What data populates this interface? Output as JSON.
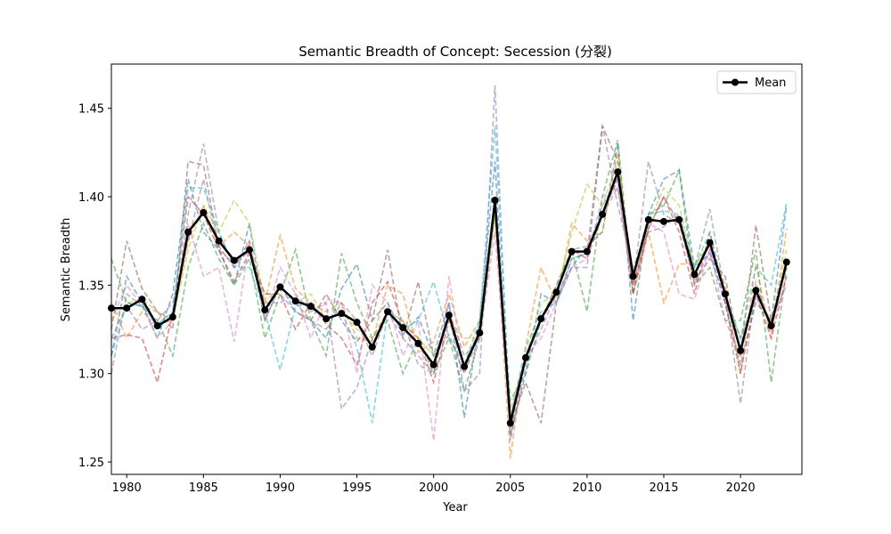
{
  "chart_data": {
    "type": "line",
    "title": "Semantic Breadth of Concept: Secession (分裂)",
    "xlabel": "Year",
    "ylabel": "Semantic Breadth",
    "xlim": [
      1979,
      2024
    ],
    "ylim": [
      1.243,
      1.475
    ],
    "xticks": [
      1980,
      1985,
      1990,
      1995,
      2000,
      2005,
      2010,
      2015,
      2020
    ],
    "yticks": [
      1.25,
      1.3,
      1.35,
      1.4,
      1.45
    ],
    "ytick_labels": [
      "1.25",
      "1.30",
      "1.35",
      "1.40",
      "1.45"
    ],
    "grid": false,
    "legend": {
      "placement": "top-right",
      "entries": [
        "Mean"
      ]
    },
    "x": [
      1979,
      1980,
      1981,
      1982,
      1983,
      1984,
      1985,
      1986,
      1987,
      1988,
      1989,
      1990,
      1991,
      1992,
      1993,
      1994,
      1995,
      1996,
      1997,
      1998,
      1999,
      2000,
      2001,
      2002,
      2003,
      2004,
      2005,
      2006,
      2007,
      2008,
      2009,
      2010,
      2011,
      2012,
      2013,
      2014,
      2015,
      2016,
      2017,
      2018,
      2019,
      2020,
      2021,
      2022,
      2023
    ],
    "mean_series": {
      "name": "Mean",
      "color": "#000000",
      "values": [
        1.337,
        1.337,
        1.342,
        1.327,
        1.332,
        1.38,
        1.391,
        1.375,
        1.364,
        1.37,
        1.336,
        1.349,
        1.341,
        1.338,
        1.331,
        1.334,
        1.329,
        1.315,
        1.335,
        1.326,
        1.317,
        1.305,
        1.333,
        1.304,
        1.323,
        1.398,
        1.272,
        1.309,
        1.331,
        1.346,
        1.369,
        1.369,
        1.39,
        1.414,
        1.355,
        1.387,
        1.386,
        1.387,
        1.356,
        1.374,
        1.345,
        1.313,
        1.347,
        1.327,
        1.363
      ]
    },
    "series": [
      {
        "color": "#1f77b4",
        "values": [
          1.31,
          1.355,
          1.34,
          1.32,
          1.345,
          1.41,
          1.38,
          1.37,
          1.35,
          1.385,
          1.33,
          1.35,
          1.335,
          1.33,
          1.32,
          1.348,
          1.362,
          1.33,
          1.34,
          1.322,
          1.332,
          1.31,
          1.34,
          1.275,
          1.33,
          1.42,
          1.265,
          1.3,
          1.345,
          1.34,
          1.36,
          1.372,
          1.38,
          1.43,
          1.33,
          1.39,
          1.41,
          1.415,
          1.36,
          1.368,
          1.34,
          1.305,
          1.34,
          1.33,
          1.395
        ]
      },
      {
        "color": "#ff7f0e",
        "values": [
          1.34,
          1.32,
          1.335,
          1.328,
          1.33,
          1.375,
          1.395,
          1.372,
          1.38,
          1.372,
          1.34,
          1.378,
          1.348,
          1.34,
          1.335,
          1.34,
          1.32,
          1.318,
          1.35,
          1.345,
          1.312,
          1.318,
          1.345,
          1.315,
          1.33,
          1.39,
          1.252,
          1.315,
          1.36,
          1.34,
          1.385,
          1.375,
          1.38,
          1.425,
          1.345,
          1.38,
          1.34,
          1.362,
          1.362,
          1.372,
          1.35,
          1.3,
          1.362,
          1.32,
          1.382
        ]
      },
      {
        "color": "#2ca02c",
        "values": [
          1.365,
          1.34,
          1.338,
          1.33,
          1.31,
          1.36,
          1.385,
          1.365,
          1.35,
          1.365,
          1.32,
          1.345,
          1.37,
          1.33,
          1.31,
          1.368,
          1.34,
          1.32,
          1.33,
          1.3,
          1.32,
          1.3,
          1.32,
          1.29,
          1.32,
          1.39,
          1.285,
          1.3,
          1.33,
          1.35,
          1.37,
          1.335,
          1.4,
          1.432,
          1.345,
          1.39,
          1.395,
          1.415,
          1.35,
          1.36,
          1.33,
          1.33,
          1.37,
          1.295,
          1.36
        ]
      },
      {
        "color": "#d62728",
        "values": [
          1.32,
          1.322,
          1.32,
          1.295,
          1.335,
          1.4,
          1.39,
          1.37,
          1.352,
          1.368,
          1.345,
          1.345,
          1.325,
          1.34,
          1.328,
          1.32,
          1.305,
          1.34,
          1.352,
          1.328,
          1.32,
          1.295,
          1.33,
          1.305,
          1.325,
          1.395,
          1.275,
          1.31,
          1.33,
          1.345,
          1.37,
          1.365,
          1.39,
          1.41,
          1.345,
          1.382,
          1.4,
          1.38,
          1.345,
          1.38,
          1.34,
          1.3,
          1.345,
          1.32,
          1.355
        ]
      },
      {
        "color": "#9467bd",
        "values": [
          1.32,
          1.338,
          1.325,
          1.33,
          1.34,
          1.375,
          1.41,
          1.37,
          1.362,
          1.37,
          1.34,
          1.34,
          1.345,
          1.335,
          1.34,
          1.28,
          1.292,
          1.32,
          1.335,
          1.32,
          1.31,
          1.3,
          1.34,
          1.29,
          1.3,
          1.463,
          1.262,
          1.305,
          1.325,
          1.345,
          1.36,
          1.36,
          1.44,
          1.395,
          1.36,
          1.38,
          1.383,
          1.39,
          1.35,
          1.37,
          1.34,
          1.32,
          1.343,
          1.33,
          1.35
        ]
      },
      {
        "color": "#8c564b",
        "values": [
          1.325,
          1.375,
          1.348,
          1.335,
          1.325,
          1.42,
          1.418,
          1.372,
          1.36,
          1.375,
          1.33,
          1.35,
          1.34,
          1.33,
          1.345,
          1.33,
          1.318,
          1.33,
          1.37,
          1.32,
          1.352,
          1.31,
          1.322,
          1.3,
          1.325,
          1.4,
          1.27,
          1.295,
          1.272,
          1.34,
          1.365,
          1.368,
          1.44,
          1.42,
          1.35,
          1.382,
          1.4,
          1.385,
          1.352,
          1.365,
          1.355,
          1.31,
          1.384,
          1.33,
          1.36
        ]
      },
      {
        "color": "#e377c2",
        "values": [
          1.33,
          1.35,
          1.338,
          1.32,
          1.33,
          1.385,
          1.355,
          1.36,
          1.318,
          1.375,
          1.33,
          1.36,
          1.345,
          1.32,
          1.342,
          1.34,
          1.3,
          1.35,
          1.34,
          1.31,
          1.33,
          1.262,
          1.355,
          1.3,
          1.32,
          1.38,
          1.27,
          1.31,
          1.32,
          1.34,
          1.36,
          1.365,
          1.4,
          1.405,
          1.35,
          1.385,
          1.38,
          1.345,
          1.342,
          1.37,
          1.33,
          1.31,
          1.352,
          1.325,
          1.355
        ]
      },
      {
        "color": "#7f7f7f",
        "values": [
          1.3,
          1.345,
          1.338,
          1.335,
          1.33,
          1.39,
          1.43,
          1.38,
          1.36,
          1.37,
          1.345,
          1.345,
          1.335,
          1.33,
          1.325,
          1.34,
          1.33,
          1.31,
          1.335,
          1.33,
          1.305,
          1.3,
          1.335,
          1.31,
          1.32,
          1.395,
          1.265,
          1.31,
          1.33,
          1.35,
          1.37,
          1.372,
          1.39,
          1.405,
          1.35,
          1.42,
          1.39,
          1.385,
          1.36,
          1.393,
          1.345,
          1.283,
          1.35,
          1.325,
          1.365
        ]
      },
      {
        "color": "#bcbd22",
        "values": [
          1.33,
          1.34,
          1.342,
          1.335,
          1.33,
          1.37,
          1.395,
          1.38,
          1.398,
          1.385,
          1.34,
          1.35,
          1.34,
          1.345,
          1.33,
          1.335,
          1.325,
          1.32,
          1.335,
          1.33,
          1.32,
          1.31,
          1.33,
          1.32,
          1.32,
          1.39,
          1.28,
          1.31,
          1.34,
          1.345,
          1.38,
          1.407,
          1.395,
          1.42,
          1.355,
          1.385,
          1.405,
          1.395,
          1.36,
          1.375,
          1.345,
          1.32,
          1.345,
          1.33,
          1.37
        ]
      },
      {
        "color": "#17becf",
        "values": [
          1.31,
          1.34,
          1.338,
          1.328,
          1.335,
          1.405,
          1.405,
          1.38,
          1.36,
          1.36,
          1.335,
          1.302,
          1.338,
          1.34,
          1.33,
          1.335,
          1.315,
          1.272,
          1.335,
          1.325,
          1.33,
          1.352,
          1.32,
          1.305,
          1.33,
          1.44,
          1.275,
          1.315,
          1.335,
          1.34,
          1.365,
          1.368,
          1.395,
          1.41,
          1.355,
          1.39,
          1.392,
          1.39,
          1.36,
          1.38,
          1.345,
          1.32,
          1.36,
          1.35,
          1.397
        ]
      }
    ]
  }
}
